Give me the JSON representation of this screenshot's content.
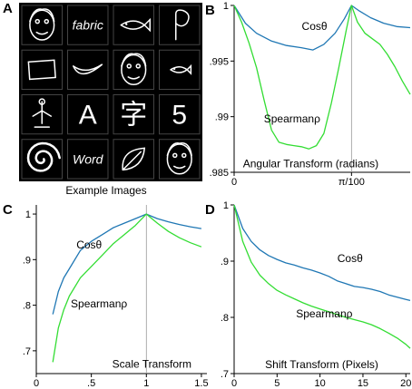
{
  "panels": {
    "A": {
      "letter": "A",
      "caption": "Example Images",
      "tiles": [
        {
          "text": "",
          "icon": "face-sketch-icon"
        },
        {
          "text": "fabric",
          "icon": "handwritten-word"
        },
        {
          "text": "",
          "icon": "fish-icon"
        },
        {
          "text": "",
          "icon": "curl-stroke-icon"
        },
        {
          "text": "",
          "icon": "rectangle-outline-icon"
        },
        {
          "text": "",
          "icon": "banana-icon"
        },
        {
          "text": "",
          "icon": "face-sketch-icon"
        },
        {
          "text": "",
          "icon": "fish-small-icon"
        },
        {
          "text": "",
          "icon": "bird-figure-icon"
        },
        {
          "text": "A",
          "icon": "letter"
        },
        {
          "text": "字",
          "icon": "chinese-character"
        },
        {
          "text": "5",
          "icon": "digit"
        },
        {
          "text": "",
          "icon": "spiral-icon"
        },
        {
          "text": "Word",
          "icon": "handwritten-word"
        },
        {
          "text": "",
          "icon": "leaf-icon"
        },
        {
          "text": "",
          "icon": "face-sketch-icon"
        }
      ]
    }
  },
  "chart_data": [
    {
      "panel": "B",
      "type": "line",
      "xlabel": "Angular Transform (radians)",
      "ylabel": "",
      "xlim": [
        0,
        0.0471
      ],
      "ylim": [
        0.985,
        1.0
      ],
      "xtick_labels": [
        {
          "value": 0,
          "label": "0"
        },
        {
          "value": 0.0314,
          "label": "π/100"
        }
      ],
      "ytick_labels": [
        {
          "value": 0.985,
          "label": ".985"
        },
        {
          "value": 0.99,
          "label": ".99"
        },
        {
          "value": 0.995,
          "label": ".995"
        },
        {
          "value": 1.0,
          "label": "1"
        }
      ],
      "reference_line_x": 0.0314,
      "series": [
        {
          "name": "Cosθ",
          "color": "#1f77b4",
          "x": [
            0,
            0.003,
            0.006,
            0.01,
            0.014,
            0.018,
            0.0211,
            0.024,
            0.027,
            0.0295,
            0.0314,
            0.0335,
            0.0365,
            0.04,
            0.0435,
            0.0471
          ],
          "y": [
            1.0,
            0.9984,
            0.9975,
            0.9968,
            0.9964,
            0.9962,
            0.996,
            0.9965,
            0.9975,
            0.9988,
            1.0,
            0.9995,
            0.9989,
            0.9984,
            0.9981,
            0.998
          ]
        },
        {
          "name": "Spearmanρ",
          "color": "#33dd33",
          "x": [
            0,
            0.002,
            0.004,
            0.006,
            0.008,
            0.01,
            0.012,
            0.014,
            0.016,
            0.018,
            0.02,
            0.022,
            0.024,
            0.026,
            0.028,
            0.03,
            0.0314,
            0.033,
            0.035,
            0.037,
            0.039,
            0.041,
            0.043,
            0.045,
            0.0471
          ],
          "y": [
            1.0,
            0.9985,
            0.9966,
            0.9944,
            0.9915,
            0.9888,
            0.9877,
            0.9875,
            0.9874,
            0.9873,
            0.9871,
            0.9874,
            0.9885,
            0.9912,
            0.9944,
            0.9978,
            1.0,
            0.9985,
            0.9975,
            0.997,
            0.9965,
            0.9956,
            0.9945,
            0.9932,
            0.992
          ]
        }
      ]
    },
    {
      "panel": "C",
      "type": "line",
      "xlabel": "Scale Transform",
      "ylabel": "",
      "xlim": [
        0,
        1.55
      ],
      "ylim": [
        0.65,
        1.02
      ],
      "xtick_labels": [
        {
          "value": 0,
          "label": "0"
        },
        {
          "value": 0.5,
          "label": ".5"
        },
        {
          "value": 1,
          "label": "1"
        },
        {
          "value": 1.5,
          "label": "1.5"
        }
      ],
      "ytick_labels": [
        {
          "value": 0.7,
          "label": ".7"
        },
        {
          "value": 0.8,
          "label": ".8"
        },
        {
          "value": 0.9,
          "label": ".9"
        },
        {
          "value": 1.0,
          "label": "1"
        }
      ],
      "reference_line_x": 1,
      "series": [
        {
          "name": "Cosθ",
          "color": "#1f77b4",
          "x": [
            0.15,
            0.2,
            0.25,
            0.3,
            0.4,
            0.5,
            0.6,
            0.7,
            0.8,
            0.9,
            1.0,
            1.1,
            1.2,
            1.3,
            1.4,
            1.5
          ],
          "y": [
            0.78,
            0.83,
            0.86,
            0.88,
            0.92,
            0.94,
            0.955,
            0.97,
            0.98,
            0.99,
            1.0,
            0.99,
            0.983,
            0.977,
            0.972,
            0.968
          ]
        },
        {
          "name": "Spearmanρ",
          "color": "#33dd33",
          "x": [
            0.15,
            0.2,
            0.25,
            0.3,
            0.4,
            0.5,
            0.6,
            0.7,
            0.8,
            0.9,
            1.0,
            1.1,
            1.2,
            1.3,
            1.4,
            1.5
          ],
          "y": [
            0.675,
            0.75,
            0.79,
            0.82,
            0.86,
            0.885,
            0.91,
            0.935,
            0.955,
            0.975,
            1.0,
            0.98,
            0.962,
            0.948,
            0.937,
            0.928
          ]
        }
      ]
    },
    {
      "panel": "D",
      "type": "line",
      "xlabel": "Shift Transform (Pixels)",
      "ylabel": "",
      "xlim": [
        0,
        20.5
      ],
      "ylim": [
        0.7,
        1.0
      ],
      "xtick_labels": [
        {
          "value": 0,
          "label": "0"
        },
        {
          "value": 5,
          "label": "5"
        },
        {
          "value": 10,
          "label": "10"
        },
        {
          "value": 15,
          "label": "15"
        },
        {
          "value": 20,
          "label": "20"
        }
      ],
      "ytick_labels": [
        {
          "value": 0.7,
          "label": ".7"
        },
        {
          "value": 0.8,
          "label": ".8"
        },
        {
          "value": 0.9,
          "label": ".9"
        },
        {
          "value": 1.0,
          "label": "1"
        }
      ],
      "series": [
        {
          "name": "Cosθ",
          "color": "#1f77b4",
          "x": [
            0,
            1,
            2,
            3,
            4,
            5,
            6,
            7,
            8,
            9,
            10,
            11,
            12,
            13,
            14,
            15,
            16,
            17,
            18,
            19,
            20,
            20.5
          ],
          "y": [
            1.0,
            0.958,
            0.935,
            0.92,
            0.91,
            0.903,
            0.897,
            0.893,
            0.888,
            0.884,
            0.879,
            0.873,
            0.865,
            0.86,
            0.855,
            0.853,
            0.85,
            0.846,
            0.84,
            0.836,
            0.832,
            0.83
          ]
        },
        {
          "name": "Spearmanρ",
          "color": "#33dd33",
          "x": [
            0,
            1,
            2,
            3,
            4,
            5,
            6,
            7,
            8,
            9,
            10,
            11,
            12,
            13,
            14,
            15,
            16,
            17,
            18,
            19,
            20,
            20.5
          ],
          "y": [
            1.0,
            0.935,
            0.898,
            0.875,
            0.86,
            0.848,
            0.84,
            0.833,
            0.826,
            0.82,
            0.815,
            0.81,
            0.805,
            0.8,
            0.796,
            0.792,
            0.787,
            0.78,
            0.772,
            0.763,
            0.752,
            0.745
          ]
        }
      ]
    }
  ]
}
